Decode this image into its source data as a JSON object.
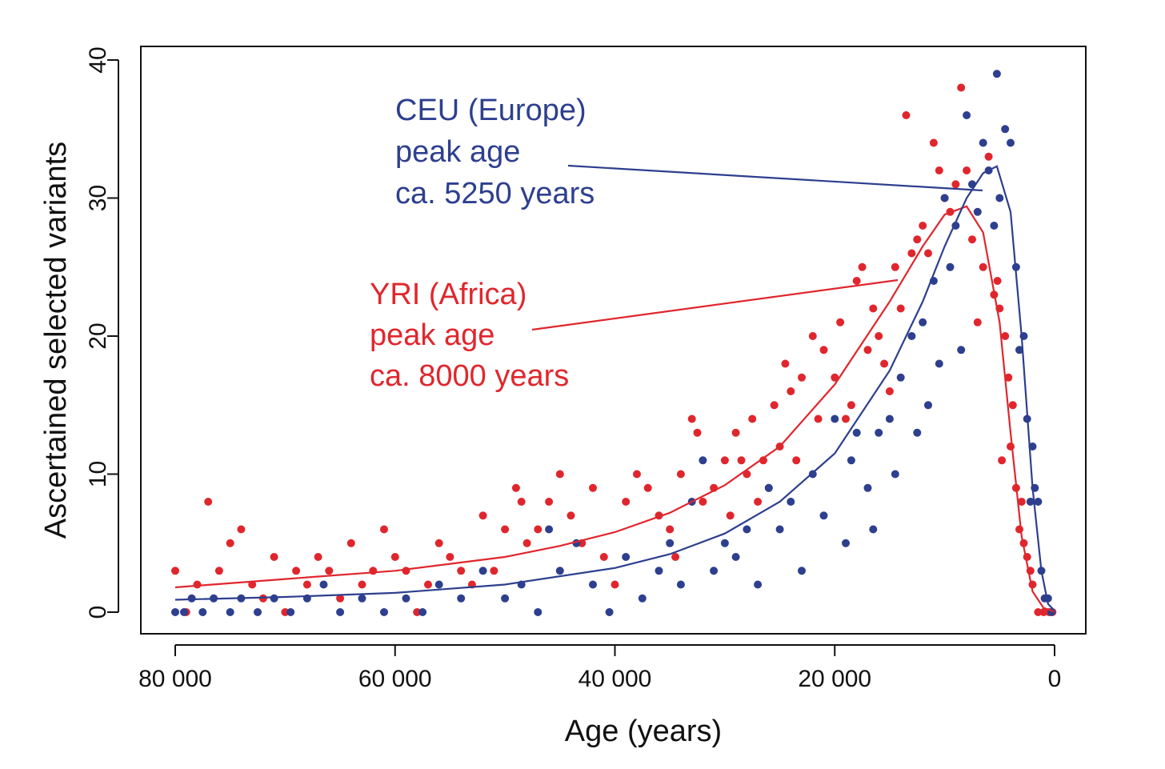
{
  "chart_data": {
    "type": "scatter",
    "xlabel": "Age (years)",
    "ylabel": "Ascertained selected variants",
    "xlim": [
      80000,
      0
    ],
    "ylim": [
      0,
      40
    ],
    "x_ticks": [
      80000,
      60000,
      40000,
      20000,
      0
    ],
    "x_tick_labels": [
      "80 000",
      "60 000",
      "40 000",
      "20 000",
      "0"
    ],
    "y_ticks": [
      0,
      10,
      20,
      30,
      40
    ],
    "y_tick_labels": [
      "0",
      "10",
      "20",
      "30",
      "40"
    ],
    "series": [
      {
        "name": "CEU",
        "color": "#2d3f8e",
        "curve_peak_age": 5250,
        "curve": [
          [
            80000,
            0.9
          ],
          [
            70000,
            1.1
          ],
          [
            60000,
            1.4
          ],
          [
            50000,
            2.0
          ],
          [
            40000,
            3.2
          ],
          [
            35000,
            4.2
          ],
          [
            30000,
            5.7
          ],
          [
            25000,
            8.0
          ],
          [
            20000,
            11.5
          ],
          [
            15000,
            17.5
          ],
          [
            12000,
            22.5
          ],
          [
            10000,
            26.5
          ],
          [
            8000,
            30.0
          ],
          [
            6500,
            31.8
          ],
          [
            5250,
            32.3
          ],
          [
            4000,
            29.0
          ],
          [
            3000,
            20.0
          ],
          [
            2000,
            9.0
          ],
          [
            1200,
            3.0
          ],
          [
            600,
            0.6
          ],
          [
            0,
            0.1
          ]
        ],
        "points": [
          [
            80000,
            0
          ],
          [
            79200,
            0
          ],
          [
            78500,
            1
          ],
          [
            77500,
            0
          ],
          [
            76500,
            1
          ],
          [
            75000,
            0
          ],
          [
            74000,
            1
          ],
          [
            72500,
            0
          ],
          [
            71000,
            1
          ],
          [
            69500,
            0
          ],
          [
            68000,
            1
          ],
          [
            66500,
            2
          ],
          [
            65000,
            0
          ],
          [
            63000,
            1
          ],
          [
            61000,
            0
          ],
          [
            59000,
            1
          ],
          [
            57500,
            0
          ],
          [
            56000,
            2
          ],
          [
            54000,
            1
          ],
          [
            52000,
            3
          ],
          [
            50000,
            1
          ],
          [
            48500,
            2
          ],
          [
            47000,
            0
          ],
          [
            46000,
            6
          ],
          [
            45000,
            3
          ],
          [
            43500,
            5
          ],
          [
            42000,
            2
          ],
          [
            40500,
            0
          ],
          [
            39000,
            4
          ],
          [
            37500,
            1
          ],
          [
            36000,
            3
          ],
          [
            35000,
            5
          ],
          [
            34000,
            2
          ],
          [
            33000,
            8
          ],
          [
            32000,
            11
          ],
          [
            31000,
            3
          ],
          [
            30000,
            5
          ],
          [
            29000,
            4
          ],
          [
            28000,
            6
          ],
          [
            27000,
            2
          ],
          [
            26000,
            9
          ],
          [
            25000,
            6
          ],
          [
            24000,
            8
          ],
          [
            23000,
            3
          ],
          [
            22000,
            10
          ],
          [
            21000,
            7
          ],
          [
            20000,
            14
          ],
          [
            19000,
            5
          ],
          [
            18500,
            11
          ],
          [
            18000,
            13
          ],
          [
            17000,
            9
          ],
          [
            16500,
            6
          ],
          [
            16000,
            13
          ],
          [
            15000,
            14
          ],
          [
            14500,
            10
          ],
          [
            14000,
            17
          ],
          [
            13000,
            20
          ],
          [
            12500,
            13
          ],
          [
            12000,
            21
          ],
          [
            11500,
            15
          ],
          [
            11000,
            24
          ],
          [
            10500,
            18
          ],
          [
            10000,
            30
          ],
          [
            9500,
            25
          ],
          [
            9000,
            28
          ],
          [
            8500,
            19
          ],
          [
            8000,
            36
          ],
          [
            7500,
            31
          ],
          [
            7000,
            29
          ],
          [
            6500,
            34
          ],
          [
            6000,
            32
          ],
          [
            5500,
            28
          ],
          [
            5250,
            39
          ],
          [
            5000,
            30
          ],
          [
            4500,
            35
          ],
          [
            4000,
            34
          ],
          [
            3500,
            25
          ],
          [
            3200,
            19
          ],
          [
            2800,
            20
          ],
          [
            2500,
            14
          ],
          [
            2200,
            8
          ],
          [
            2000,
            12
          ],
          [
            1800,
            9
          ],
          [
            1500,
            8
          ],
          [
            1200,
            3
          ],
          [
            900,
            1
          ],
          [
            600,
            1
          ],
          [
            300,
            0
          ]
        ]
      },
      {
        "name": "YRI",
        "color": "#e0262d",
        "curve_peak_age": 8000,
        "curve": [
          [
            80000,
            1.8
          ],
          [
            70000,
            2.4
          ],
          [
            60000,
            3.0
          ],
          [
            50000,
            4.0
          ],
          [
            45000,
            4.8
          ],
          [
            40000,
            5.8
          ],
          [
            35000,
            7.2
          ],
          [
            30000,
            9.2
          ],
          [
            25000,
            12.0
          ],
          [
            20000,
            16.5
          ],
          [
            15000,
            22.5
          ],
          [
            12000,
            26.5
          ],
          [
            10000,
            28.8
          ],
          [
            8000,
            29.4
          ],
          [
            6500,
            27.5
          ],
          [
            5000,
            21.0
          ],
          [
            4000,
            13.0
          ],
          [
            3000,
            5.5
          ],
          [
            2000,
            1.5
          ],
          [
            1000,
            0.3
          ],
          [
            0,
            0.05
          ]
        ],
        "points": [
          [
            80000,
            3
          ],
          [
            79000,
            0
          ],
          [
            78000,
            2
          ],
          [
            77000,
            8
          ],
          [
            76000,
            3
          ],
          [
            75000,
            5
          ],
          [
            74000,
            6
          ],
          [
            73000,
            2
          ],
          [
            72000,
            1
          ],
          [
            71000,
            4
          ],
          [
            70000,
            0
          ],
          [
            69000,
            3
          ],
          [
            68000,
            2
          ],
          [
            67000,
            4
          ],
          [
            66000,
            3
          ],
          [
            65000,
            1
          ],
          [
            64000,
            5
          ],
          [
            63000,
            2
          ],
          [
            62000,
            3
          ],
          [
            61000,
            6
          ],
          [
            60000,
            4
          ],
          [
            59000,
            3
          ],
          [
            58000,
            0
          ],
          [
            57000,
            2
          ],
          [
            56000,
            5
          ],
          [
            55000,
            4
          ],
          [
            54000,
            3
          ],
          [
            53000,
            2
          ],
          [
            52000,
            7
          ],
          [
            51000,
            3
          ],
          [
            50000,
            6
          ],
          [
            49000,
            9
          ],
          [
            48500,
            8
          ],
          [
            48000,
            5
          ],
          [
            47000,
            6
          ],
          [
            46000,
            8
          ],
          [
            45000,
            10
          ],
          [
            44000,
            7
          ],
          [
            43000,
            5
          ],
          [
            42000,
            9
          ],
          [
            41000,
            4
          ],
          [
            40000,
            2
          ],
          [
            39000,
            8
          ],
          [
            38000,
            10
          ],
          [
            37000,
            9
          ],
          [
            36000,
            7
          ],
          [
            35000,
            6
          ],
          [
            34500,
            4
          ],
          [
            34000,
            10
          ],
          [
            33000,
            14
          ],
          [
            32500,
            13
          ],
          [
            32000,
            8
          ],
          [
            31000,
            9
          ],
          [
            30000,
            11
          ],
          [
            29500,
            7
          ],
          [
            29000,
            13
          ],
          [
            28500,
            11
          ],
          [
            28000,
            10
          ],
          [
            27500,
            14
          ],
          [
            27000,
            8
          ],
          [
            26500,
            11
          ],
          [
            26000,
            9
          ],
          [
            25500,
            15
          ],
          [
            25000,
            12
          ],
          [
            24500,
            18
          ],
          [
            24000,
            16
          ],
          [
            23500,
            11
          ],
          [
            23000,
            17
          ],
          [
            22000,
            20
          ],
          [
            21500,
            14
          ],
          [
            21000,
            19
          ],
          [
            20000,
            17
          ],
          [
            19500,
            21
          ],
          [
            19000,
            14
          ],
          [
            18500,
            15
          ],
          [
            18000,
            24
          ],
          [
            17500,
            25
          ],
          [
            17000,
            19
          ],
          [
            16500,
            22
          ],
          [
            16000,
            20
          ],
          [
            15500,
            18
          ],
          [
            15000,
            16
          ],
          [
            14500,
            25
          ],
          [
            14000,
            22
          ],
          [
            13500,
            36
          ],
          [
            13000,
            26
          ],
          [
            12500,
            27
          ],
          [
            12000,
            28
          ],
          [
            11500,
            26
          ],
          [
            11000,
            34
          ],
          [
            10500,
            32
          ],
          [
            10000,
            30
          ],
          [
            9500,
            29
          ],
          [
            9000,
            31
          ],
          [
            8500,
            38
          ],
          [
            8000,
            32
          ],
          [
            7500,
            27
          ],
          [
            7000,
            21
          ],
          [
            6500,
            25
          ],
          [
            6000,
            33
          ],
          [
            5500,
            23
          ],
          [
            5200,
            24
          ],
          [
            5000,
            22
          ],
          [
            4800,
            11
          ],
          [
            4500,
            20
          ],
          [
            4200,
            17
          ],
          [
            4000,
            12
          ],
          [
            3800,
            15
          ],
          [
            3500,
            9
          ],
          [
            3200,
            6
          ],
          [
            3000,
            8
          ],
          [
            2800,
            5
          ],
          [
            2500,
            4
          ],
          [
            2200,
            3
          ],
          [
            2000,
            2
          ],
          [
            1500,
            0
          ],
          [
            1000,
            0
          ],
          [
            500,
            0
          ],
          [
            200,
            0
          ]
        ]
      }
    ],
    "annotations": [
      {
        "series": "CEU",
        "lines": [
          "CEU (Europe)",
          "peak age",
          "ca. 5250 years"
        ]
      },
      {
        "series": "YRI",
        "lines": [
          "YRI (Africa)",
          "peak age",
          "ca. 8000 years"
        ]
      }
    ]
  }
}
